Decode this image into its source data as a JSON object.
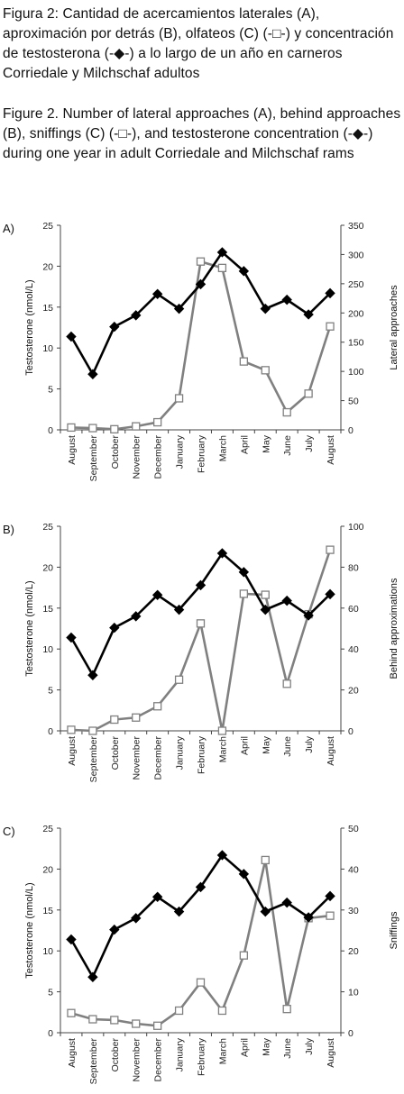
{
  "caption_es": "Figura 2: Cantidad de acercamientos laterales (A), aproximación por detrás (B), olfateos (C) (-□-) y concentración de testosterona (-◆-) a lo largo de un año en carneros Corriedale y Milchschaf adultos",
  "caption_en": "Figure 2. Number of lateral approaches (A), behind approaches (B), sniffings (C) (-□-), and testosterone concentration (-◆-) during one year in adult Corriedale and Milchschaf rams",
  "colors": {
    "testosterone": "#000000",
    "behavior": "#808080"
  },
  "chart_data": [
    {
      "panel": "A)",
      "type": "line",
      "categories": [
        "August",
        "September",
        "October",
        "November",
        "December",
        "January",
        "February",
        "March",
        "April",
        "May",
        "June",
        "July",
        "August"
      ],
      "ylabel_left": "Testosterone (nmol/L)",
      "ylim_left": [
        0,
        25
      ],
      "yticks_left": [
        0,
        5,
        10,
        15,
        20,
        25
      ],
      "ylabel_right": "Lateral approaches",
      "ylim_right": [
        0,
        350
      ],
      "yticks_right": [
        0,
        50,
        100,
        150,
        200,
        250,
        300,
        350
      ],
      "series": [
        {
          "axis": "left",
          "marker": "diamond",
          "values": [
            11.4,
            6.8,
            12.6,
            14.0,
            16.6,
            14.8,
            17.8,
            21.7,
            19.4,
            14.8,
            15.9,
            14.1,
            16.7
          ]
        },
        {
          "axis": "right",
          "marker": "square",
          "values": [
            4,
            3,
            1,
            6,
            13,
            54,
            288,
            277,
            117,
            102,
            30,
            62,
            177
          ]
        }
      ]
    },
    {
      "panel": "B)",
      "type": "line",
      "categories": [
        "August",
        "September",
        "October",
        "November",
        "December",
        "January",
        "February",
        "March",
        "April",
        "May",
        "June",
        "July",
        "August"
      ],
      "ylabel_left": "Testosterone (nmol/L)",
      "ylim_left": [
        0,
        25
      ],
      "yticks_left": [
        0,
        5,
        10,
        15,
        20,
        25
      ],
      "ylabel_right": "Behind approximations",
      "ylim_right": [
        0,
        100
      ],
      "yticks_right": [
        0,
        20,
        40,
        60,
        80,
        100
      ],
      "series": [
        {
          "axis": "left",
          "marker": "diamond",
          "values": [
            11.4,
            6.8,
            12.6,
            14.0,
            16.6,
            14.8,
            17.8,
            21.7,
            19.4,
            14.8,
            15.9,
            14.1,
            16.7
          ]
        },
        {
          "axis": "right",
          "marker": "square",
          "values": [
            0.5,
            0,
            5.5,
            6.5,
            12,
            25,
            52.5,
            0,
            67,
            66.5,
            23,
            57,
            88.5
          ]
        }
      ]
    },
    {
      "panel": "C)",
      "type": "line",
      "categories": [
        "August",
        "September",
        "October",
        "November",
        "December",
        "January",
        "February",
        "March",
        "April",
        "May",
        "June",
        "July",
        "August"
      ],
      "ylabel_left": "Testosterone (nmol/L)",
      "ylim_left": [
        0,
        25
      ],
      "yticks_left": [
        0,
        5,
        10,
        15,
        20,
        25
      ],
      "ylabel_right": "Sniffings",
      "ylim_right": [
        0,
        50
      ],
      "yticks_right": [
        0,
        10,
        20,
        30,
        40,
        50
      ],
      "series": [
        {
          "axis": "left",
          "marker": "diamond",
          "values": [
            11.4,
            6.8,
            12.6,
            14.0,
            16.6,
            14.8,
            17.8,
            21.7,
            19.4,
            14.8,
            15.9,
            14.1,
            16.7
          ]
        },
        {
          "axis": "right",
          "marker": "square",
          "values": [
            4.8,
            3.3,
            3.1,
            2.2,
            1.7,
            5.4,
            12.3,
            5.4,
            18.9,
            42.2,
            5.8,
            28.0,
            28.6
          ]
        }
      ]
    }
  ]
}
